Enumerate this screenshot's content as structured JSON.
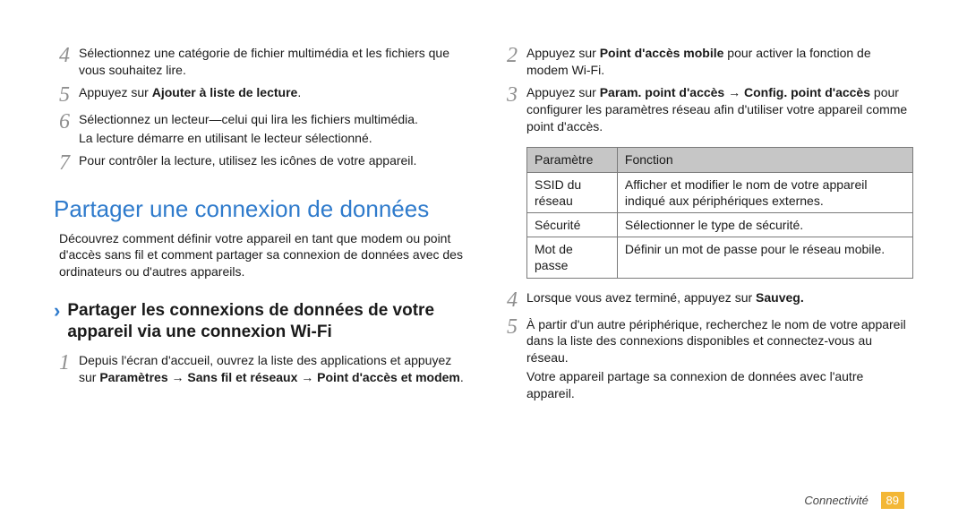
{
  "left": {
    "steps_top": [
      {
        "num": "4",
        "text": "Sélectionnez une catégorie de fichier multimédia et les fichiers que vous souhaitez lire."
      },
      {
        "num": "5",
        "html": "Appuyez sur <strong>Ajouter à liste de lecture</strong>."
      },
      {
        "num": "6",
        "text": "Sélectionnez un lecteur—celui qui lira les fichiers multimédia.",
        "sub": "La lecture démarre en utilisant le lecteur sélectionné."
      },
      {
        "num": "7",
        "text": "Pour contrôler la lecture, utilisez les icônes de votre appareil."
      }
    ],
    "h1": "Partager une connexion de données",
    "intro": "Découvrez comment définir votre appareil en tant que modem ou point d'accès sans fil et comment partager sa connexion de données avec des ordinateurs ou d'autres appareils.",
    "h2_marker": "›",
    "h2": "Partager les connexions de données de votre appareil via une connexion Wi-Fi",
    "steps_bottom": [
      {
        "num": "1",
        "html": "Depuis l'écran d'accueil, ouvrez la liste des applications et appuyez sur <strong>Paramètres</strong> → <strong>Sans fil et réseaux</strong> → <strong>Point d'accès et modem</strong>."
      }
    ]
  },
  "right": {
    "steps_top": [
      {
        "num": "2",
        "html": "Appuyez sur <strong>Point d'accès mobile</strong> pour activer la fonction de modem Wi-Fi."
      },
      {
        "num": "3",
        "html": "Appuyez sur <strong>Param. point d'accès</strong> → <strong>Config. point d'accès</strong> pour configurer les paramètres réseau afin d'utiliser votre appareil comme point d'accès."
      }
    ],
    "table": {
      "headers": [
        "Paramètre",
        "Fonction"
      ],
      "rows": [
        [
          "SSID du réseau",
          "Afficher et modifier le nom de votre appareil indiqué aux périphériques externes."
        ],
        [
          "Sécurité",
          "Sélectionner le type de sécurité."
        ],
        [
          "Mot de passe",
          "Définir un mot de passe pour le réseau mobile."
        ]
      ]
    },
    "steps_bottom": [
      {
        "num": "4",
        "html": "Lorsque vous avez terminé, appuyez sur <strong>Sauveg.</strong>"
      },
      {
        "num": "5",
        "text": "À partir d'un autre périphérique, recherchez le nom de votre appareil dans la liste des connexions disponibles et connectez-vous au réseau.",
        "sub": "Votre appareil partage sa connexion de données avec l'autre appareil."
      }
    ]
  },
  "footer": {
    "section": "Connectivité",
    "page": "89"
  },
  "colors": {
    "heading_blue": "#2f7bcc",
    "step_num_gray": "#8f8f8f",
    "table_header_bg": "#c6c6c6",
    "table_border": "#7a7a7a",
    "page_badge_bg": "#f3b736"
  }
}
